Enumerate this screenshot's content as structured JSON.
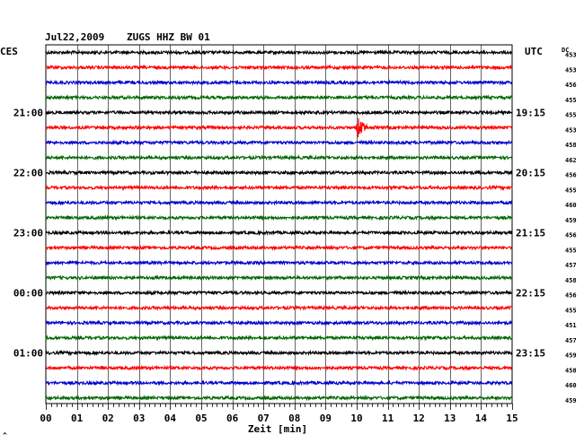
{
  "chart_data": {
    "type": "line",
    "header": {
      "date": "Jul22,2009",
      "station": "ZUGS HHZ BW 01"
    },
    "left_timezone": "CES",
    "right_timezone": "UTC",
    "dc_label": "DC",
    "xlabel": "Zeit [min]",
    "xlim": [
      0,
      15
    ],
    "x_ticks": [
      "00",
      "01",
      "02",
      "03",
      "04",
      "05",
      "06",
      "07",
      "08",
      "09",
      "10",
      "11",
      "12",
      "13",
      "14",
      "15"
    ],
    "left_time_labels": [
      {
        "row": 4,
        "text": "21:00"
      },
      {
        "row": 8,
        "text": "22:00"
      },
      {
        "row": 12,
        "text": "23:00"
      },
      {
        "row": 16,
        "text": "00:00"
      },
      {
        "row": 20,
        "text": "01:00"
      }
    ],
    "right_time_labels": [
      {
        "row": 4,
        "text": "19:15"
      },
      {
        "row": 8,
        "text": "20:15"
      },
      {
        "row": 12,
        "text": "21:15"
      },
      {
        "row": 16,
        "text": "22:15"
      },
      {
        "row": 20,
        "text": "23:15"
      }
    ],
    "trace_colors": [
      "#000000",
      "#ff0000",
      "#0000cc",
      "#006600"
    ],
    "dc_offsets": [
      "453",
      "453",
      "456",
      "455",
      "455",
      "453",
      "458",
      "462",
      "456",
      "455",
      "460",
      "459",
      "456",
      "455",
      "457",
      "458",
      "456",
      "455",
      "451",
      "457",
      "459",
      "458",
      "460",
      "459"
    ],
    "grid": true,
    "events": [
      {
        "row": 5,
        "minute": 10.05,
        "description_amplitude": "large"
      }
    ],
    "corner_mark": "^"
  }
}
